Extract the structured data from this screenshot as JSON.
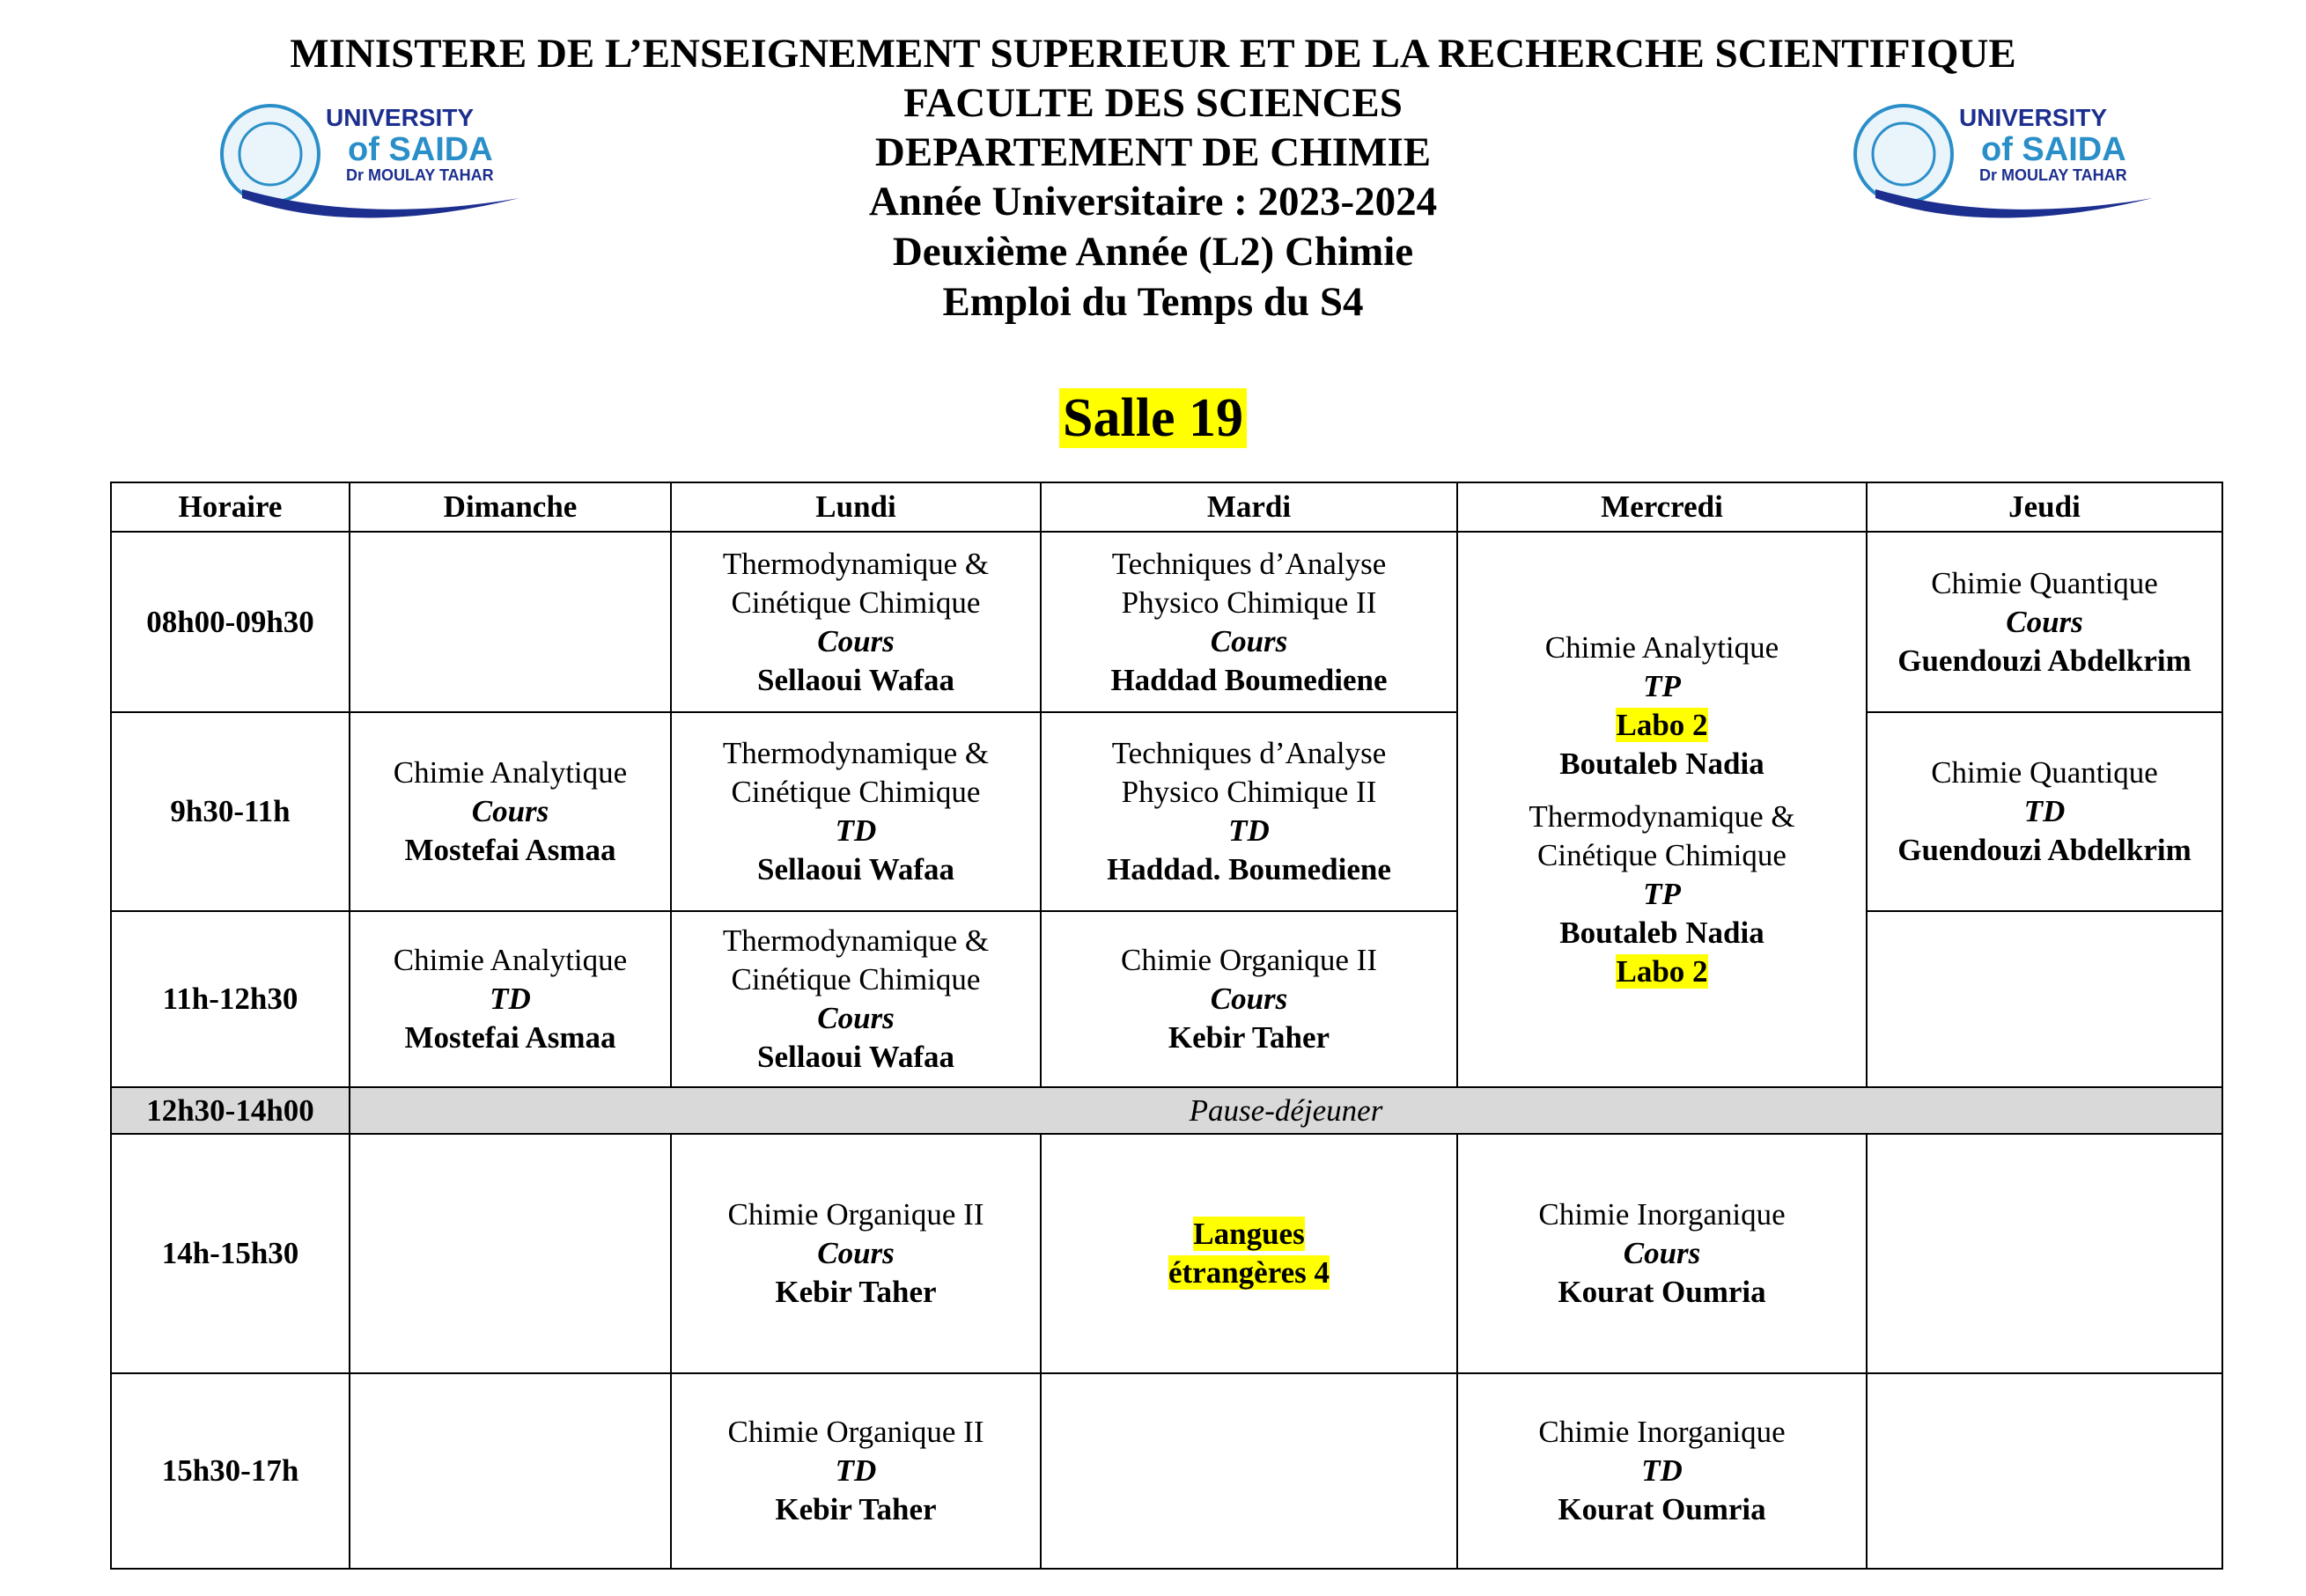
{
  "header": {
    "lines": [
      "MINISTERE DE L’ENSEIGNEMENT SUPERIEUR ET DE LA RECHERCHE SCIENTIFIQUE",
      "FACULTE DES SCIENCES",
      "DEPARTEMENT DE CHIMIE",
      "Année Universitaire : 2023-2024",
      "Deuxième Année (L2) Chimie",
      "Emploi du Temps du S4"
    ],
    "room": "Salle 19"
  },
  "logo": {
    "line1": "UNIVERSITY",
    "line2": "of SAIDA",
    "line3": "Dr MOULAY TAHAR"
  },
  "table": {
    "columns": [
      "Horaire",
      "Dimanche",
      "Lundi",
      "Mardi",
      "Mercredi",
      "Jeudi"
    ],
    "rows": [
      {
        "time": "08h00-09h30",
        "cells": [
          [
            "Thermodynamique &",
            "Cinétique Chimique",
            "Cours",
            "Sellaoui Wafaa"
          ],
          [
            "Techniques d’Analyse",
            "Physico Chimique II",
            "Cours",
            "Haddad Boumediene"
          ],
          [
            "Chimie Analytique",
            "TP",
            "Labo 2",
            "Boutaleb Nadia",
            "Thermodynamique &",
            "Cinétique Chimique",
            "TP",
            "Boutaleb Nadia",
            "Labo 2"
          ],
          [
            "Chimie Quantique",
            "Cours",
            "Guendouzi Abdelkrim"
          ]
        ]
      },
      {
        "time": "9h30-11h",
        "cells": [
          [
            "Chimie Analytique",
            "Cours",
            "Mostefai Asmaa"
          ],
          [
            "Thermodynamique &",
            "Cinétique Chimique",
            "TD",
            "Sellaoui Wafaa"
          ],
          [
            "Techniques d’Analyse",
            "Physico Chimique II",
            "TD",
            "Haddad. Boumediene"
          ],
          [
            "Chimie Quantique",
            "TD",
            "Guendouzi Abdelkrim"
          ]
        ]
      },
      {
        "time": "11h-12h30",
        "cells": [
          [
            "Chimie Analytique",
            "TD",
            "Mostefai Asmaa"
          ],
          [
            "Thermodynamique &",
            "Cinétique Chimique",
            "Cours",
            "Sellaoui Wafaa"
          ],
          [
            "Chimie Organique II",
            "Cours",
            "Kebir Taher"
          ]
        ]
      },
      {
        "time": "12h30-14h00",
        "note": "Pause-déjeuner"
      },
      {
        "time": "14h-15h30",
        "cells": [
          [
            "Chimie Organique II",
            "Cours",
            "Kebir Taher"
          ],
          [
            "Langues",
            "étrangères 4"
          ],
          [
            "Chimie Inorganique",
            "Cours",
            "Kourat Oumria"
          ]
        ]
      },
      {
        "time": "15h30-17h",
        "cells": [
          [
            "Chimie Organique II",
            "TD",
            "Kebir Taher"
          ],
          [
            "Chimie Inorganique",
            "TD",
            "Kourat Oumria"
          ]
        ]
      }
    ]
  }
}
